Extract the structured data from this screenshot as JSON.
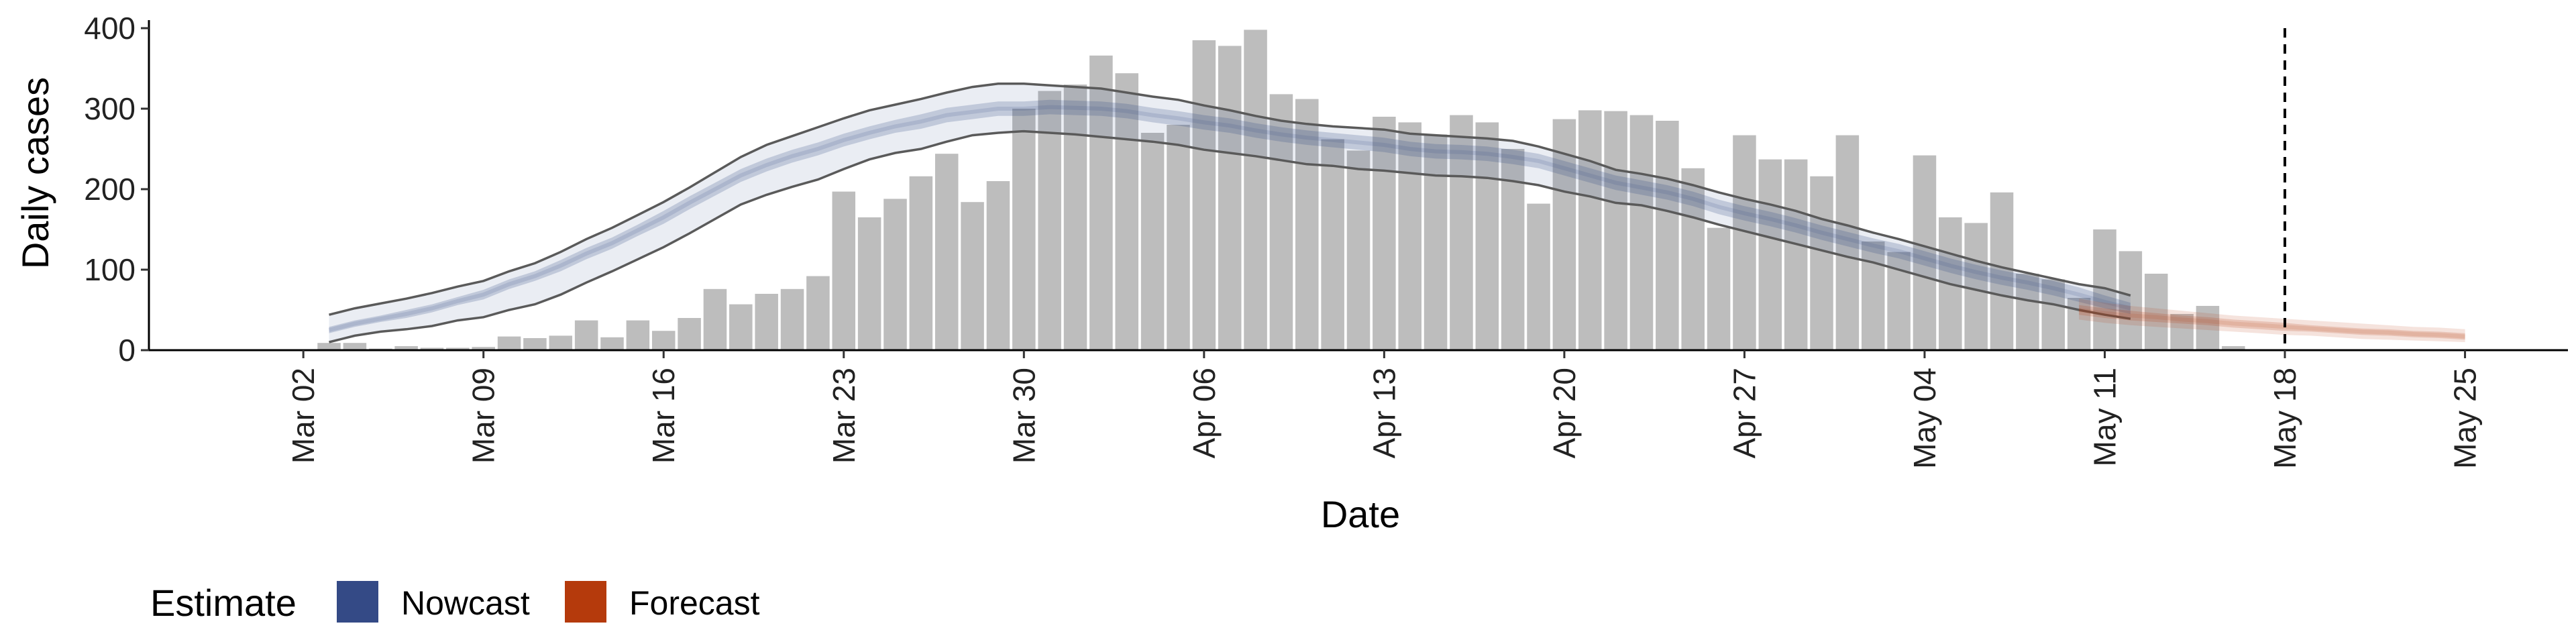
{
  "chart_data": {
    "type": "bar",
    "title": "",
    "xlabel": "Date",
    "ylabel": "Daily cases",
    "ylim": [
      0,
      410
    ],
    "xlim": [
      "2020-02-25",
      "2020-05-29"
    ],
    "y_ticks": [
      0,
      100,
      200,
      300,
      400
    ],
    "x_ticks": [
      {
        "date": "2020-03-02",
        "label": "Mar 02"
      },
      {
        "date": "2020-03-09",
        "label": "Mar 09"
      },
      {
        "date": "2020-03-16",
        "label": "Mar 16"
      },
      {
        "date": "2020-03-23",
        "label": "Mar 23"
      },
      {
        "date": "2020-03-30",
        "label": "Mar 30"
      },
      {
        "date": "2020-04-06",
        "label": "Apr 06"
      },
      {
        "date": "2020-04-13",
        "label": "Apr 13"
      },
      {
        "date": "2020-04-20",
        "label": "Apr 20"
      },
      {
        "date": "2020-04-27",
        "label": "Apr 27"
      },
      {
        "date": "2020-05-04",
        "label": "May 04"
      },
      {
        "date": "2020-05-11",
        "label": "May 11"
      },
      {
        "date": "2020-05-18",
        "label": "May 18"
      },
      {
        "date": "2020-05-25",
        "label": "May 25"
      }
    ],
    "vline_date": "2020-05-18",
    "grid": false,
    "legend": {
      "title": "Estimate",
      "position": "bottom-left",
      "entries": [
        {
          "label": "Nowcast",
          "color": "#344A86"
        },
        {
          "label": "Forecast",
          "color": "#B53A0C"
        }
      ]
    },
    "bars": {
      "start_date": "2020-03-03",
      "color": "#BDBDBD",
      "values": [
        9,
        9,
        2,
        5,
        3,
        3,
        4,
        17,
        15,
        18,
        37,
        16,
        37,
        24,
        40,
        76,
        57,
        70,
        76,
        92,
        197,
        165,
        188,
        216,
        244,
        184,
        210,
        300,
        322,
        330,
        366,
        344,
        270,
        280,
        385,
        378,
        398,
        318,
        312,
        262,
        248,
        290,
        283,
        268,
        292,
        283,
        250,
        182,
        287,
        298,
        297,
        292,
        285,
        226,
        152,
        267,
        237,
        237,
        216,
        267,
        135,
        122,
        242,
        165,
        158,
        196,
        95,
        88,
        65,
        150,
        123,
        95,
        45,
        55,
        5
      ]
    },
    "series": [
      {
        "role": "nowcast",
        "start_date": "2020-03-03",
        "color": "#344A86",
        "median": [
          25,
          33,
          39,
          45,
          52,
          61,
          69,
          82,
          92,
          105,
          120,
          133,
          149,
          165,
          183,
          200,
          217,
          230,
          241,
          250,
          261,
          270,
          278,
          284,
          292,
          296,
          300,
          300,
          302,
          301,
          300,
          297,
          292,
          288,
          283,
          279,
          273,
          268,
          264,
          261,
          258,
          255,
          250,
          247,
          246,
          244,
          240,
          235,
          226,
          217,
          208,
          202,
          196,
          188,
          178,
          170,
          163,
          155,
          146,
          138,
          130,
          123,
          114,
          105,
          97,
          90,
          84,
          77,
          69,
          60,
          52
        ],
        "upper_50": [
          29,
          37,
          43,
          50,
          57,
          66,
          75,
          88,
          98,
          112,
          127,
          140,
          156,
          173,
          191,
          208,
          225,
          238,
          249,
          258,
          269,
          278,
          286,
          293,
          301,
          305,
          309,
          309,
          311,
          310,
          309,
          306,
          301,
          297,
          292,
          288,
          282,
          277,
          273,
          270,
          267,
          264,
          259,
          256,
          255,
          253,
          249,
          244,
          235,
          226,
          217,
          211,
          205,
          197,
          187,
          179,
          172,
          164,
          155,
          147,
          139,
          132,
          123,
          114,
          106,
          99,
          93,
          86,
          78,
          68,
          59
        ],
        "lower_50": [
          21,
          29,
          35,
          40,
          47,
          56,
          63,
          76,
          86,
          98,
          113,
          126,
          142,
          157,
          175,
          192,
          209,
          222,
          233,
          242,
          253,
          262,
          270,
          275,
          283,
          287,
          291,
          291,
          293,
          292,
          291,
          288,
          283,
          279,
          274,
          270,
          264,
          259,
          255,
          252,
          249,
          246,
          241,
          238,
          237,
          235,
          231,
          226,
          217,
          208,
          199,
          193,
          187,
          179,
          169,
          161,
          154,
          146,
          137,
          129,
          121,
          114,
          105,
          96,
          88,
          81,
          75,
          68,
          60,
          52,
          45
        ],
        "upper_90": [
          44,
          52,
          58,
          64,
          71,
          79,
          86,
          98,
          108,
          122,
          138,
          152,
          168,
          184,
          202,
          221,
          240,
          255,
          266,
          277,
          288,
          298,
          305,
          312,
          320,
          327,
          331,
          331,
          329,
          327,
          325,
          320,
          315,
          311,
          304,
          298,
          291,
          285,
          281,
          278,
          276,
          274,
          269,
          267,
          265,
          263,
          260,
          253,
          244,
          235,
          224,
          219,
          213,
          205,
          196,
          188,
          181,
          173,
          163,
          155,
          146,
          138,
          129,
          120,
          111,
          103,
          96,
          89,
          82,
          77,
          68
        ],
        "lower_90": [
          10,
          18,
          23,
          26,
          30,
          37,
          41,
          50,
          57,
          69,
          84,
          98,
          113,
          128,
          145,
          163,
          181,
          193,
          203,
          212,
          225,
          237,
          245,
          250,
          259,
          267,
          270,
          272,
          270,
          268,
          265,
          262,
          259,
          255,
          249,
          245,
          241,
          236,
          231,
          229,
          225,
          223,
          220,
          217,
          216,
          214,
          210,
          205,
          197,
          191,
          183,
          180,
          173,
          165,
          156,
          148,
          140,
          132,
          124,
          116,
          109,
          100,
          91,
          82,
          75,
          68,
          62,
          57,
          50,
          44,
          39
        ]
      },
      {
        "role": "forecast",
        "start_date": "2020-05-10",
        "color": "#B53A0C",
        "median": [
          50,
          46,
          43,
          41,
          38,
          36,
          33,
          31,
          29,
          27,
          25,
          23,
          22,
          20,
          19,
          17
        ],
        "upper_50": [
          56,
          52,
          49,
          46,
          43,
          41,
          38,
          36,
          34,
          31,
          29,
          27,
          26,
          24,
          23,
          21
        ],
        "lower_50": [
          44,
          40,
          37,
          35,
          33,
          31,
          28,
          26,
          24,
          23,
          21,
          19,
          18,
          16,
          15,
          13
        ],
        "upper_90": [
          64,
          59,
          55,
          52,
          49,
          46,
          43,
          41,
          39,
          37,
          35,
          33,
          31,
          29,
          28,
          26
        ],
        "lower_90": [
          38,
          34,
          31,
          29,
          27,
          25,
          23,
          21,
          19,
          18,
          16,
          14,
          13,
          12,
          11,
          10
        ]
      }
    ]
  }
}
